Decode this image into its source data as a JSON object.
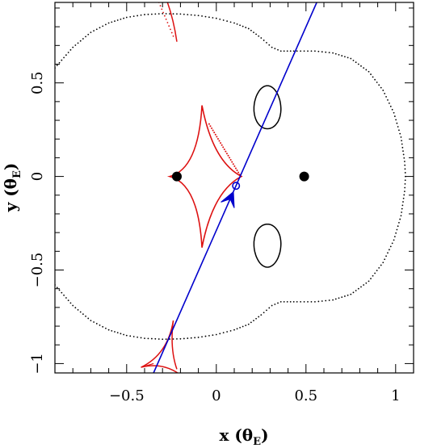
{
  "chart_data": {
    "type": "scatter",
    "xlabel": "x (θE)",
    "ylabel": "y (θE)",
    "xlabel_main": "x (θ",
    "xlabel_sub": "E",
    "xlabel_close": ")",
    "ylabel_main": "y (θ",
    "ylabel_sub": "E",
    "ylabel_close": ")",
    "xlim": [
      -0.9,
      1.1
    ],
    "ylim": [
      -1.05,
      0.93
    ],
    "x_ticks": [
      {
        "value": -0.5,
        "label": "−0.5"
      },
      {
        "value": 0,
        "label": "0"
      },
      {
        "value": 0.5,
        "label": "0.5"
      },
      {
        "value": 1,
        "label": "1"
      }
    ],
    "y_ticks": [
      {
        "value": -1,
        "label": "−1"
      },
      {
        "value": -0.5,
        "label": "−0.5"
      },
      {
        "value": 0,
        "label": "0"
      },
      {
        "value": 0.5,
        "label": "0.5"
      }
    ],
    "lens_masses": [
      {
        "x": -0.22,
        "y": 0.0
      },
      {
        "x": 0.49,
        "y": 0.0
      }
    ],
    "source_trajectory": {
      "start": [
        -0.35,
        -1.05
      ],
      "end": [
        0.56,
        0.93
      ],
      "color": "#0000cc"
    },
    "source_position": {
      "x": 0.11,
      "y": -0.05
    },
    "colors": {
      "critical_curve": "#000000",
      "caustic": "#dd1111",
      "trajectory": "#0000cc",
      "lens": "#000000"
    }
  }
}
